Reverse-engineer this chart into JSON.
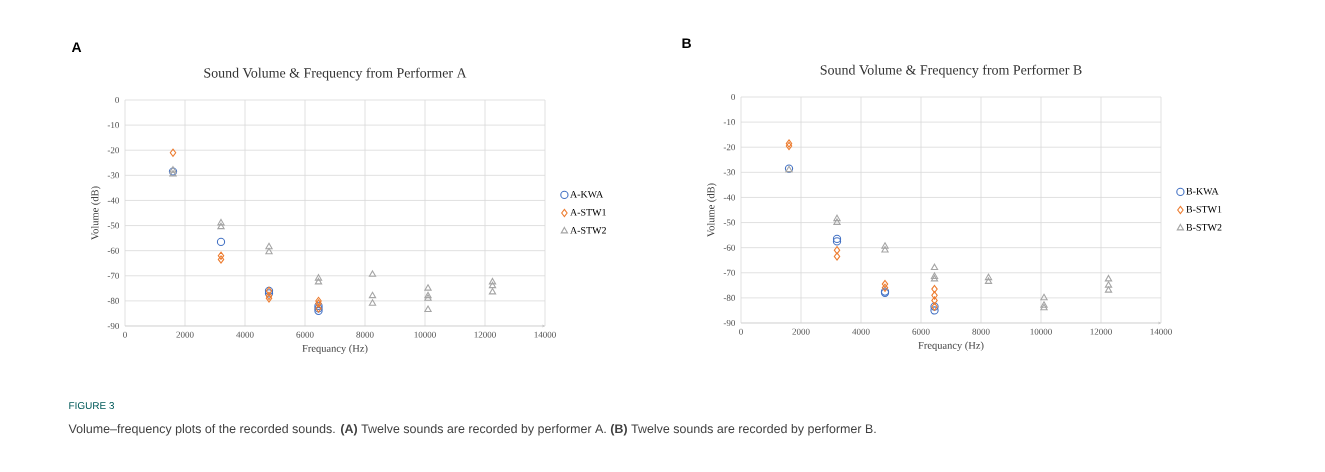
{
  "chart_data": [
    {
      "type": "scatter",
      "title": "Sound Volume & Frequency from Performer A",
      "xlabel": "Frequancy (Hz)",
      "ylabel": "Volume (dB)",
      "annotations": [
        "A"
      ],
      "xlim": [
        0,
        14000
      ],
      "xticks": [
        0,
        2000,
        4000,
        6000,
        8000,
        10000,
        12000,
        14000
      ],
      "ylim": [
        -90,
        0
      ],
      "yticks": [
        -90,
        -80,
        -70,
        -60,
        -50,
        -40,
        -30,
        -20,
        -10,
        0
      ],
      "grid": true,
      "legend": "right",
      "series": [
        {
          "name": "A-KWA",
          "color": "#4472c4",
          "marker": "circle",
          "x": [
            1600,
            3200,
            4800,
            4800,
            6450,
            6450,
            6450
          ],
          "values": [
            -28.5,
            -56.5,
            -77,
            -76,
            -84,
            -82,
            -83
          ]
        },
        {
          "name": "A-STW1",
          "color": "#ed7d31",
          "marker": "diamond",
          "x": [
            1600,
            3200,
            3200,
            4800,
            4800,
            4800,
            6450,
            6450,
            6450
          ],
          "values": [
            -21,
            -62,
            -63.5,
            -76,
            -78,
            -79,
            -80,
            -81,
            -83
          ]
        },
        {
          "name": "A-STW2",
          "color": "#a5a5a5",
          "marker": "triangle",
          "x": [
            1600,
            1600,
            3200,
            3200,
            4800,
            4800,
            6450,
            6450,
            8250,
            8250,
            8250,
            10100,
            10100,
            10100,
            10100,
            12250,
            12250,
            12250
          ],
          "values": [
            -28,
            -29.5,
            -49,
            -50.5,
            -58.5,
            -60.5,
            -71,
            -72.5,
            -69.5,
            -78,
            -81,
            -75,
            -78,
            -79,
            -83.5,
            -72.5,
            -74,
            -76.5
          ]
        }
      ]
    },
    {
      "type": "scatter",
      "title": "Sound Volume & Frequency from Performer B",
      "xlabel": "Frequancy (Hz)",
      "ylabel": "Volume (dB)",
      "annotations": [
        "B",
        "FIGURE 3",
        "Volume–frequency plots of the recorded sounds. **(A)** Twelve sounds are recorded by performer A. **(B)** Twelve sounds are recorded by performer B."
      ],
      "xlim": [
        0,
        14000
      ],
      "xticks": [
        0,
        2000,
        4000,
        6000,
        8000,
        10000,
        12000,
        14000
      ],
      "ylim": [
        -90,
        0
      ],
      "yticks": [
        -90,
        -80,
        -70,
        -60,
        -50,
        -40,
        -30,
        -20,
        -10,
        0
      ],
      "grid": true,
      "legend": "right",
      "series": [
        {
          "name": "B-KWA",
          "color": "#4472c4",
          "marker": "circle",
          "x": [
            1600,
            3200,
            3200,
            4800,
            4800,
            6450,
            6450
          ],
          "values": [
            -28.5,
            -56.5,
            -57.5,
            -77.5,
            -78,
            -83.5,
            -85
          ]
        },
        {
          "name": "B-STW1",
          "color": "#ed7d31",
          "marker": "diamond",
          "x": [
            1600,
            1600,
            3200,
            3200,
            4800,
            4800,
            6450,
            6450,
            6450,
            6450
          ],
          "values": [
            -18.5,
            -19.5,
            -61,
            -63.5,
            -74.5,
            -76,
            -76.5,
            -79,
            -81,
            -83.5
          ]
        },
        {
          "name": "B-STW2",
          "color": "#a5a5a5",
          "marker": "triangle",
          "x": [
            1600,
            3200,
            3200,
            4800,
            4800,
            6450,
            6450,
            6450,
            8250,
            8250,
            10100,
            10100,
            10100,
            12250,
            12250,
            12250
          ],
          "values": [
            -29,
            -48.5,
            -50,
            -59.5,
            -61,
            -68,
            -71.5,
            -72.5,
            -72,
            -73.5,
            -80,
            -83,
            -84,
            -72.5,
            -75,
            -77
          ]
        }
      ]
    }
  ]
}
